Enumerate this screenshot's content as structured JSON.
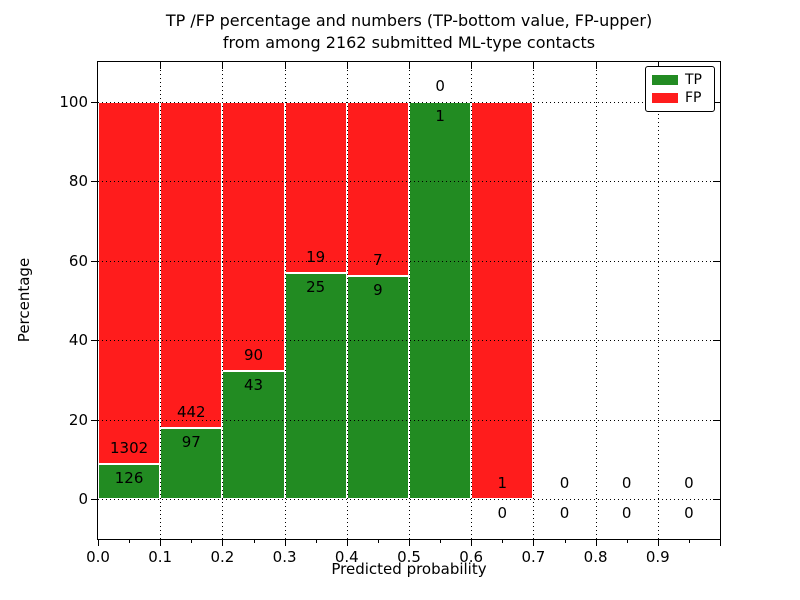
{
  "chart_data": {
    "type": "bar",
    "stacked": true,
    "title_line1": "TP /FP percentage and numbers (TP-bottom value, FP-upper)",
    "title_line2": "from among 2162 submitted ML-type contacts",
    "total_submitted_contacts": 2162,
    "xlabel": "Predicted probability",
    "ylabel": "Percentage",
    "xlim": [
      0.0,
      1.0
    ],
    "ylim": [
      -10,
      110
    ],
    "xticks": [
      0.0,
      0.1,
      0.2,
      0.3,
      0.4,
      0.5,
      0.6,
      0.7,
      0.8,
      0.9
    ],
    "yticks": [
      0,
      20,
      40,
      60,
      80,
      100
    ],
    "grid_style": "dotted",
    "legend": {
      "position": "upper-right",
      "items": [
        {
          "label": "TP",
          "color": "#228b22"
        },
        {
          "label": "FP",
          "color": "#ff1c1c"
        }
      ]
    },
    "colors": {
      "tp": "#228b22",
      "fp": "#ff1c1c",
      "bar_edge": "#ffffff",
      "axis": "#000000"
    },
    "bins": [
      {
        "x0": 0.0,
        "x1": 0.1,
        "tp": 126,
        "fp": 1302,
        "tp_pct": 8.82
      },
      {
        "x0": 0.1,
        "x1": 0.2,
        "tp": 97,
        "fp": 442,
        "tp_pct": 18.0
      },
      {
        "x0": 0.2,
        "x1": 0.3,
        "tp": 43,
        "fp": 90,
        "tp_pct": 32.33
      },
      {
        "x0": 0.3,
        "x1": 0.4,
        "tp": 25,
        "fp": 19,
        "tp_pct": 56.82
      },
      {
        "x0": 0.4,
        "x1": 0.5,
        "tp": 9,
        "fp": 7,
        "tp_pct": 56.25
      },
      {
        "x0": 0.5,
        "x1": 0.6,
        "tp": 1,
        "fp": 0,
        "tp_pct": 100.0
      },
      {
        "x0": 0.6,
        "x1": 0.7,
        "tp": 0,
        "fp": 1,
        "tp_pct": 0.0
      },
      {
        "x0": 0.7,
        "x1": 0.8,
        "tp": 0,
        "fp": 0,
        "tp_pct": null
      },
      {
        "x0": 0.8,
        "x1": 0.9,
        "tp": 0,
        "fp": 0,
        "tp_pct": null
      },
      {
        "x0": 0.9,
        "x1": 1.0,
        "tp": 0,
        "fp": 0,
        "tp_pct": null
      }
    ]
  }
}
